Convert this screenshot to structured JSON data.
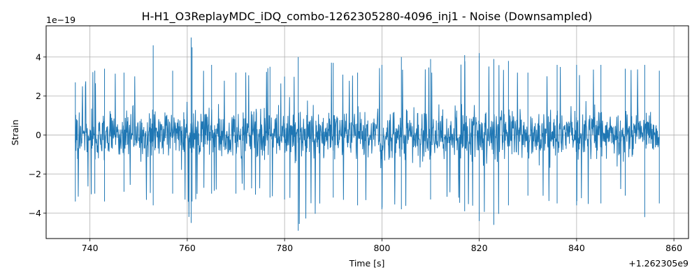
{
  "chart_data": {
    "type": "line",
    "title": "H-H1_O3ReplayMDC_iDQ_combo-1262305280-4096_inj1 - Noise (Downsampled)",
    "xlabel": "Time [s]",
    "ylabel": "Strain",
    "x_offset_label": "+1.262305e9",
    "y_scale_label": "1e−19",
    "xlim": [
      731,
      863
    ],
    "ylim": [
      -5.3,
      5.6
    ],
    "xticks": [
      740,
      760,
      780,
      800,
      820,
      840,
      860
    ],
    "xtick_labels": [
      "740",
      "760",
      "780",
      "800",
      "820",
      "840",
      "860"
    ],
    "yticks": [
      -4,
      -2,
      0,
      2,
      4
    ],
    "ytick_labels": [
      "−4",
      "−2",
      "0",
      "2",
      "4"
    ],
    "grid": true,
    "legend": "none",
    "colors": {
      "line": "#1f77b4",
      "grid": "#b0b0b0",
      "axes": "#000000"
    },
    "series": [
      {
        "x_range": [
          737,
          857
        ],
        "sample_count": 1800,
        "envelope": {
          "x": [
            737,
            741,
            743,
            747,
            753,
            757,
            760.8,
            761,
            765,
            770,
            777,
            780,
            782.8,
            790,
            795,
            800,
            804,
            810,
            817,
            820,
            823,
            826,
            830,
            836,
            840,
            845,
            850,
            854,
            857
          ],
          "max": [
            2.7,
            3.3,
            3.4,
            3.2,
            4.6,
            3.3,
            5.0,
            4.5,
            3.6,
            3.2,
            3.5,
            3.0,
            4.0,
            3.7,
            3.2,
            3.6,
            4.0,
            3.9,
            4.1,
            4.2,
            3.9,
            3.8,
            3.2,
            3.6,
            3.6,
            3.6,
            3.4,
            3.6,
            3.3
          ],
          "min": [
            -3.4,
            -3.0,
            -3.4,
            -2.9,
            -3.6,
            -3.0,
            -4.5,
            -3.4,
            -3.0,
            -3.0,
            -3.2,
            -3.3,
            -4.9,
            -3.2,
            -3.6,
            -3.8,
            -3.8,
            -3.3,
            -3.9,
            -4.4,
            -4.6,
            -3.6,
            -3.1,
            -3.5,
            -3.6,
            -3.5,
            -3.1,
            -4.2,
            -3.5
          ]
        }
      }
    ]
  }
}
